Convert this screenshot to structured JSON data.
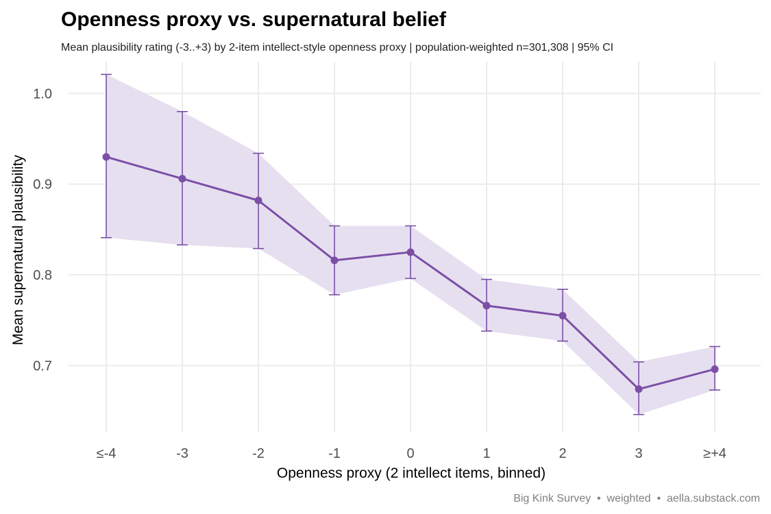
{
  "chart_data": {
    "type": "line",
    "title": "Openness proxy vs. supernatural belief",
    "subtitle": "Mean plausibility rating (-3..+3) by 2-item intellect-style openness proxy | population-weighted n=301,308 | 95% CI",
    "xlabel": "Openness proxy (2 intellect items, binned)",
    "ylabel": "Mean supernatural plausibility",
    "caption": "Big Kink Survey  •  weighted  •  aella.substack.com",
    "categories": [
      "≤-4",
      "-3",
      "-2",
      "-1",
      "0",
      "1",
      "2",
      "3",
      "≥+4"
    ],
    "series": [
      {
        "values": [
          0.93,
          0.906,
          0.882,
          0.816,
          0.825,
          0.766,
          0.755,
          0.674,
          0.696
        ],
        "ci_lower": [
          0.841,
          0.833,
          0.829,
          0.778,
          0.796,
          0.738,
          0.727,
          0.646,
          0.673
        ],
        "ci_upper": [
          1.021,
          0.98,
          0.934,
          0.854,
          0.854,
          0.795,
          0.784,
          0.704,
          0.721
        ]
      }
    ],
    "yticks": [
      0.7,
      0.8,
      0.9,
      1.0
    ],
    "ytick_labels": [
      "0.7",
      "0.8",
      "0.9",
      "1.0"
    ],
    "ylim": [
      0.627,
      1.035
    ],
    "grid": true,
    "colors": {
      "line": "#7b4fa6",
      "ribbon": "#e6dff0",
      "grid": "#ebebeb"
    }
  }
}
